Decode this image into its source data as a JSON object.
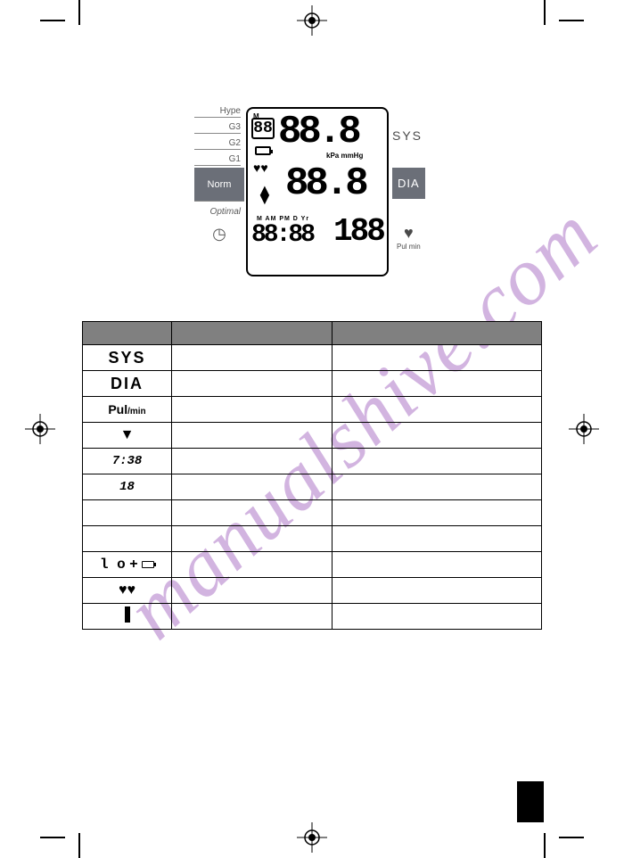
{
  "watermark": "manualshive.com",
  "display": {
    "left_labels": {
      "hype": "Hype",
      "g3": "G3",
      "g2": "G2",
      "g1": "G1",
      "norm": "Norm",
      "optimal": "Optimal",
      "clock_icon": "◷"
    },
    "lcd": {
      "mem_label": "M",
      "mem_digits": "88",
      "sys_digits": "88.8",
      "units": "kPa mmHg",
      "dia_digits": "88.8",
      "mampm": "M AM PM D Yr",
      "time_digits": "88:88",
      "pul_digits": "188",
      "hearts": "♥♥",
      "arrow_up": "▲",
      "arrow_down": "▼"
    },
    "right_labels": {
      "sys": "SYS",
      "dia": "DIA",
      "heart": "♥",
      "pulmin": "Pul\nmin"
    }
  },
  "table": {
    "headers": [
      "",
      "",
      ""
    ],
    "rows": [
      {
        "symbol": "SYS",
        "symbol_class": "sys",
        "desc": "",
        "expl": ""
      },
      {
        "symbol": "DIA",
        "symbol_class": "dia",
        "desc": "",
        "expl": ""
      },
      {
        "symbol": "Pul/min",
        "symbol_class": "pul",
        "desc": "",
        "expl": ""
      },
      {
        "symbol": "▼",
        "symbol_class": "tri",
        "desc": "",
        "expl": ""
      },
      {
        "symbol": "7:38",
        "symbol_class": "time",
        "desc": "",
        "expl": ""
      },
      {
        "symbol": "18",
        "symbol_class": "num",
        "desc": "",
        "expl": ""
      },
      {
        "symbol": "",
        "symbol_class": "blank1",
        "desc": "",
        "expl": ""
      },
      {
        "symbol": "",
        "symbol_class": "blank2",
        "desc": "",
        "expl": ""
      },
      {
        "symbol": "Lo + ▭",
        "symbol_class": "lo",
        "desc": "",
        "expl": ""
      },
      {
        "symbol": "♥♥",
        "symbol_class": "hearts",
        "desc": "",
        "expl": ""
      },
      {
        "symbol": "▮",
        "symbol_class": "bar",
        "desc": "",
        "expl": ""
      }
    ]
  },
  "colors": {
    "watermark": "#c49bd6",
    "header_bg": "#808080",
    "norm_bg": "#6b6f78",
    "text": "#000000"
  }
}
